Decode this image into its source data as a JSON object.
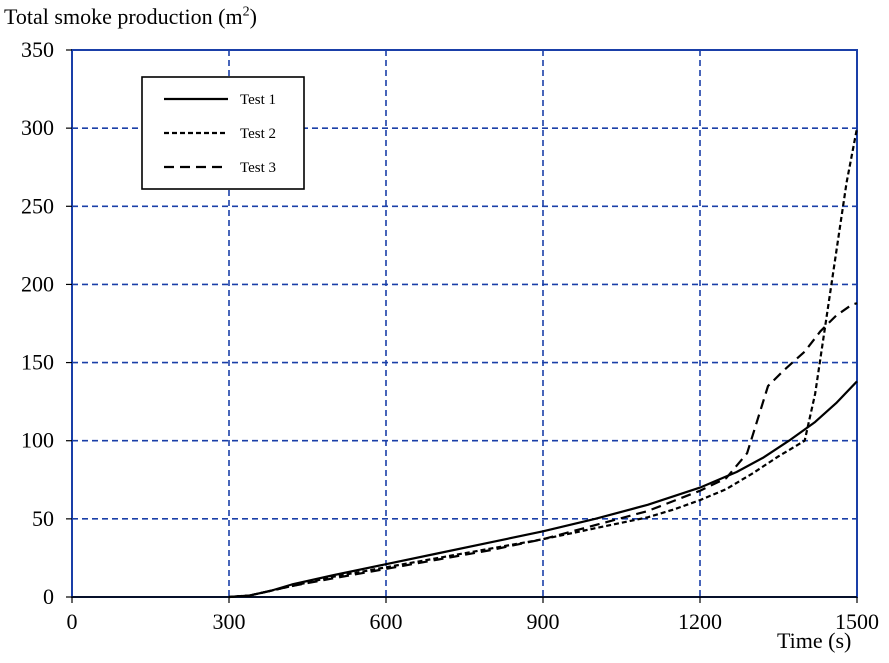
{
  "chart_data": {
    "type": "line",
    "ylabel_main": "Total smoke production (m",
    "ylabel_sup": "2",
    "ylabel_end": ")",
    "xlabel": "Time (s)",
    "xlim": [
      0,
      1500
    ],
    "ylim": [
      0,
      350
    ],
    "xticks": [
      0,
      300,
      600,
      900,
      1200,
      1500
    ],
    "yticks": [
      0,
      50,
      100,
      150,
      200,
      250,
      300,
      350
    ],
    "grid": true,
    "grid_color": "#1a3fa8",
    "axis_color": "#1a3fa8",
    "legend_position": "top-left",
    "series": [
      {
        "name": "Test 1",
        "dash": "solid",
        "x": [
          300,
          340,
          380,
          420,
          500,
          600,
          700,
          800,
          900,
          1000,
          1100,
          1200,
          1270,
          1320,
          1370,
          1420,
          1460,
          1500
        ],
        "y": [
          0,
          1,
          4,
          8,
          14,
          21,
          28,
          35,
          42,
          50,
          59,
          70,
          80,
          89,
          100,
          112,
          124,
          138
        ]
      },
      {
        "name": "Test 2",
        "dash": "dotted",
        "x": [
          300,
          340,
          380,
          420,
          500,
          600,
          700,
          800,
          900,
          1000,
          1100,
          1150,
          1200,
          1250,
          1300,
          1350,
          1400,
          1420,
          1440,
          1460,
          1480,
          1500
        ],
        "y": [
          0,
          1,
          4,
          7,
          13,
          19,
          25,
          31,
          37,
          44,
          51,
          56,
          62,
          69,
          79,
          90,
          100,
          130,
          175,
          220,
          265,
          300
        ]
      },
      {
        "name": "Test 3",
        "dash": "dashed",
        "x": [
          300,
          340,
          380,
          420,
          500,
          600,
          700,
          800,
          900,
          1000,
          1100,
          1200,
          1250,
          1290,
          1330,
          1360,
          1400,
          1430,
          1460,
          1490,
          1500
        ],
        "y": [
          0,
          1,
          4,
          7,
          12,
          18,
          24,
          30,
          37,
          46,
          55,
          68,
          76,
          92,
          135,
          145,
          157,
          170,
          180,
          187,
          188
        ]
      }
    ]
  }
}
